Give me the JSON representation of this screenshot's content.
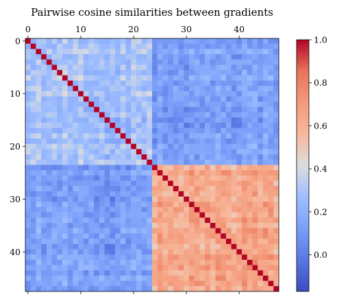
{
  "chart_data": {
    "type": "heatmap",
    "title": "Pairwise cosine similarities between gradients",
    "n": 48,
    "x_ticks": [
      0,
      10,
      20,
      30,
      40
    ],
    "x_tick_labels": [
      "0",
      "10",
      "20",
      "30",
      "40"
    ],
    "y_ticks": [
      0,
      10,
      20,
      30,
      40
    ],
    "y_tick_labels": [
      "0",
      "10",
      "20",
      "30",
      "40"
    ],
    "x_axis_position": "top",
    "colormap": "coolwarm",
    "colorbar": {
      "vmin": -0.17,
      "vmax": 1.0,
      "ticks": [
        0.0,
        0.2,
        0.4,
        0.6,
        0.8,
        1.0
      ],
      "tick_labels": [
        "0.0",
        "0.2",
        "0.4",
        "0.6",
        "0.8",
        "1.0"
      ]
    },
    "block_structure": {
      "group_a": {
        "range": [
          0,
          23
        ],
        "within_mean": 0.28
      },
      "group_b": {
        "range": [
          24,
          47
        ],
        "within_mean": 0.62
      },
      "between_mean": 0.12,
      "diagonal": 1.0
    }
  }
}
